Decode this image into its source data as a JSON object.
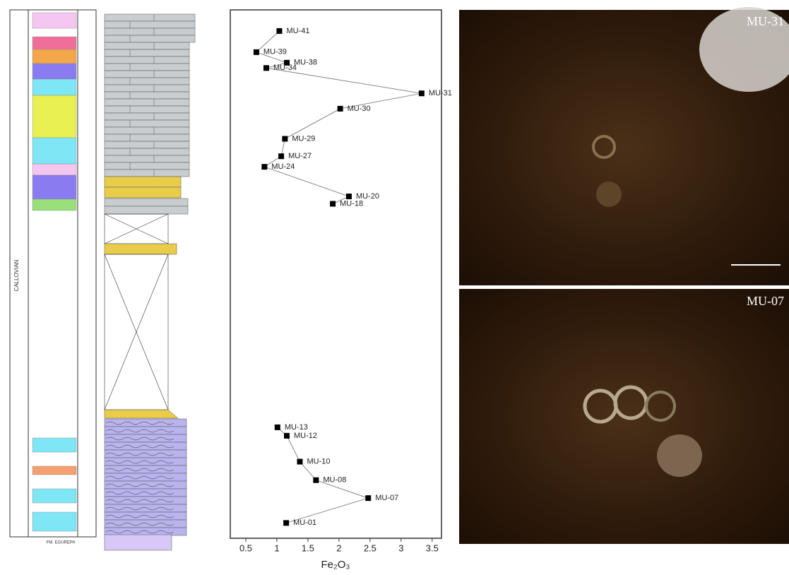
{
  "chart_data": {
    "type": "line",
    "x_label": "Fe₂O₃",
    "point_labels": [
      "MU-41",
      "MU-39",
      "MU-38",
      "MU-34",
      "MU-31",
      "MU-30",
      "MU-29",
      "MU-27",
      "MU-24",
      "MU-20",
      "MU-18",
      null,
      "MU-13",
      "MU-12",
      "MU-10",
      "MU-08",
      "MU-07",
      "MU-01"
    ],
    "x": [
      1.04,
      0.67,
      1.16,
      0.83,
      3.33,
      2.02,
      1.13,
      1.07,
      0.8,
      2.16,
      1.9,
      null,
      1.01,
      1.16,
      1.37,
      1.63,
      2.47,
      1.15
    ],
    "y": [
      96.0,
      92.0,
      90.0,
      89.0,
      84.2,
      81.3,
      75.6,
      72.3,
      70.3,
      64.7,
      63.3,
      null,
      21.0,
      19.4,
      14.5,
      11.0,
      7.6,
      2.9
    ],
    "xlim": [
      0.25,
      3.65
    ],
    "ylim": [
      0,
      100
    ],
    "xticks": [
      0.5,
      1.0,
      1.5,
      2.0,
      2.5,
      3.0,
      3.5
    ],
    "color": "#000000"
  },
  "figure": {
    "stage": "CALLOVIAN",
    "formation": "FM. EGUREPA",
    "photos": [
      "MU-31",
      "MU-07"
    ]
  }
}
